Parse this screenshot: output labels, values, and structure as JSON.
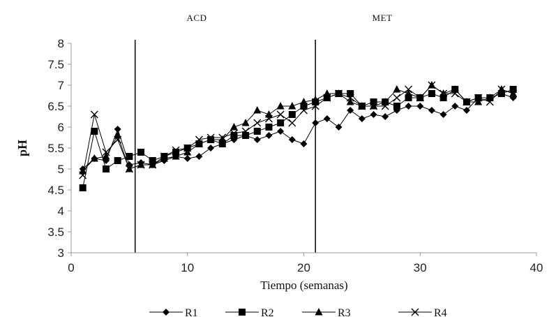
{
  "chart_data": {
    "type": "line",
    "xlabel": "Tiempo (semanas)",
    "ylabel": "pH",
    "xlim": [
      0,
      40
    ],
    "ylim": [
      3,
      8
    ],
    "xticks": [
      "0",
      "10",
      "20",
      "30",
      "40"
    ],
    "yticks": [
      "3",
      "3.5",
      "4",
      "4.5",
      "5",
      "5.5",
      "6",
      "6.5",
      "7",
      "7.5",
      "8"
    ],
    "phase_lines": [
      {
        "x": 5.5,
        "label": "ACD"
      },
      {
        "x": 21,
        "label": "MET"
      }
    ],
    "legend_position": "bottom",
    "grid": false,
    "x": [
      1,
      2,
      3,
      4,
      5,
      6,
      7,
      8,
      9,
      10,
      11,
      12,
      13,
      14,
      15,
      16,
      17,
      18,
      19,
      20,
      21,
      22,
      23,
      24,
      25,
      26,
      27,
      28,
      29,
      30,
      31,
      32,
      33,
      34,
      35,
      36,
      37,
      38
    ],
    "series": [
      {
        "name": "R1",
        "marker": "diamond",
        "values": [
          5.0,
          5.25,
          5.2,
          5.95,
          5.1,
          5.15,
          5.1,
          5.2,
          5.3,
          5.25,
          5.3,
          5.5,
          5.6,
          5.7,
          5.8,
          5.7,
          5.8,
          5.9,
          5.7,
          5.6,
          6.1,
          6.2,
          6.0,
          6.4,
          6.2,
          6.3,
          6.25,
          6.4,
          6.5,
          6.5,
          6.4,
          6.3,
          6.5,
          6.4,
          6.7,
          6.7,
          6.8,
          6.7
        ]
      },
      {
        "name": "R2",
        "marker": "square",
        "values": [
          4.55,
          5.9,
          5.0,
          5.2,
          5.3,
          5.4,
          5.2,
          5.3,
          5.4,
          5.5,
          5.6,
          5.7,
          5.6,
          5.8,
          5.8,
          5.9,
          6.0,
          6.1,
          6.3,
          6.5,
          6.6,
          6.7,
          6.8,
          6.8,
          6.5,
          6.6,
          6.6,
          6.5,
          6.7,
          6.7,
          6.8,
          6.7,
          6.9,
          6.6,
          6.7,
          6.7,
          6.8,
          6.9
        ]
      },
      {
        "name": "R3",
        "marker": "triangle",
        "values": [
          4.95,
          5.25,
          5.3,
          5.8,
          5.0,
          5.1,
          5.1,
          5.25,
          5.3,
          5.4,
          5.6,
          5.7,
          5.7,
          6.0,
          6.1,
          6.4,
          6.3,
          6.5,
          6.5,
          6.6,
          6.65,
          6.8,
          6.8,
          6.6,
          6.5,
          6.5,
          6.6,
          6.9,
          6.8,
          6.7,
          7.0,
          6.8,
          6.9,
          6.6,
          6.6,
          6.7,
          6.9,
          6.8
        ]
      },
      {
        "name": "R4",
        "marker": "cross",
        "values": [
          4.85,
          6.3,
          5.4,
          5.7,
          5.0,
          5.1,
          5.1,
          5.3,
          5.45,
          5.5,
          5.7,
          5.75,
          5.75,
          5.85,
          5.9,
          6.1,
          6.2,
          6.3,
          6.1,
          6.4,
          6.5,
          6.7,
          6.8,
          6.7,
          6.5,
          6.5,
          6.5,
          6.7,
          6.9,
          6.7,
          7.0,
          6.8,
          6.8,
          6.6,
          6.7,
          6.6,
          6.9,
          6.8
        ]
      }
    ]
  }
}
